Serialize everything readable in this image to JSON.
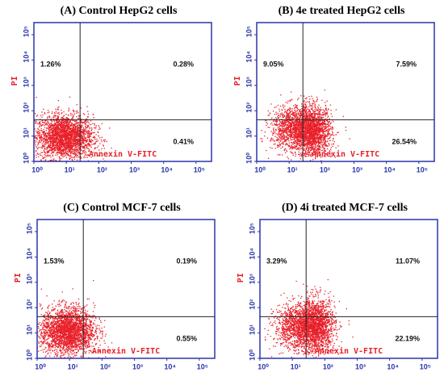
{
  "chart_data": [
    {
      "type": "scatter",
      "title": "(A)  Control HepG2 cells",
      "xlabel": "Annexin V-FITC",
      "ylabel": "PI",
      "values": [
        1.26,
        0.28,
        0.41
      ],
      "value_labels": [
        "1.26%",
        "0.28%",
        "0.41%"
      ],
      "color": "#e8202a",
      "axis_color": "#2a35a8",
      "log_scale": true,
      "xlim": [
        1,
        300000
      ],
      "ylim": [
        1,
        300000
      ],
      "xticks": [
        {
          "value": 1,
          "label": "10⁰"
        },
        {
          "value": 10,
          "label": "10¹"
        },
        {
          "value": 100,
          "label": "10²"
        },
        {
          "value": 1000,
          "label": "10³"
        },
        {
          "value": 10000,
          "label": "10⁴"
        },
        {
          "value": 100000,
          "label": "10⁵"
        }
      ],
      "yticks": [
        {
          "value": 1,
          "label": "10⁰"
        },
        {
          "value": 10,
          "label": "10¹"
        },
        {
          "value": 100,
          "label": "10²"
        },
        {
          "value": 1000,
          "label": "10³"
        },
        {
          "value": 10000,
          "label": "10⁴"
        },
        {
          "value": 100000,
          "label": "10⁵"
        }
      ]
    },
    {
      "type": "scatter",
      "title": "(B)  4e treated HepG2 cells",
      "xlabel": "Annexin V-FITC",
      "ylabel": "PI",
      "values": [
        9.05,
        7.59,
        26.54
      ],
      "value_labels": [
        "9.05%",
        "7.59%",
        "26.54%"
      ],
      "color": "#e8202a",
      "axis_color": "#2a35a8",
      "log_scale": true,
      "xlim": [
        1,
        300000
      ],
      "ylim": [
        1,
        300000
      ],
      "xticks": [
        {
          "value": 1,
          "label": "10⁰"
        },
        {
          "value": 10,
          "label": "10¹"
        },
        {
          "value": 100,
          "label": "10²"
        },
        {
          "value": 1000,
          "label": "10³"
        },
        {
          "value": 10000,
          "label": "10⁴"
        },
        {
          "value": 100000,
          "label": "10⁵"
        }
      ],
      "yticks": [
        {
          "value": 1,
          "label": "10⁰"
        },
        {
          "value": 10,
          "label": "10¹"
        },
        {
          "value": 100,
          "label": "10²"
        },
        {
          "value": 1000,
          "label": "10³"
        },
        {
          "value": 10000,
          "label": "10⁴"
        },
        {
          "value": 100000,
          "label": "10⁵"
        }
      ]
    },
    {
      "type": "scatter",
      "title": "(C)  Control MCF-7 cells",
      "xlabel": "Annexin V-FITC",
      "ylabel": "PI",
      "values": [
        1.53,
        0.19,
        0.55
      ],
      "value_labels": [
        "1.53%",
        "0.19%",
        "0.55%"
      ],
      "color": "#e8202a",
      "axis_color": "#2a35a8",
      "log_scale": true,
      "xlim": [
        1,
        300000
      ],
      "ylim": [
        1,
        300000
      ],
      "xticks": [
        {
          "value": 1,
          "label": "10⁰"
        },
        {
          "value": 10,
          "label": "10¹"
        },
        {
          "value": 100,
          "label": "10²"
        },
        {
          "value": 1000,
          "label": "10³"
        },
        {
          "value": 10000,
          "label": "10⁴"
        },
        {
          "value": 100000,
          "label": "10⁵"
        }
      ],
      "yticks": [
        {
          "value": 1,
          "label": "10⁰"
        },
        {
          "value": 10,
          "label": "10¹"
        },
        {
          "value": 100,
          "label": "10²"
        },
        {
          "value": 1000,
          "label": "10³"
        },
        {
          "value": 10000,
          "label": "10⁴"
        },
        {
          "value": 100000,
          "label": "10⁵"
        }
      ]
    },
    {
      "type": "scatter",
      "title": "(D)  4i treated MCF-7 cells",
      "xlabel": "Annexin V-FITC",
      "ylabel": "PI",
      "values": [
        3.29,
        11.07,
        22.19
      ],
      "value_labels": [
        "3.29%",
        "11.07%",
        "22.19%"
      ],
      "color": "#e8202a",
      "axis_color": "#2a35a8",
      "log_scale": true,
      "xlim": [
        1,
        300000
      ],
      "ylim": [
        1,
        300000
      ],
      "xticks": [
        {
          "value": 1,
          "label": "10⁰"
        },
        {
          "value": 10,
          "label": "10¹"
        },
        {
          "value": 100,
          "label": "10²"
        },
        {
          "value": 1000,
          "label": "10³"
        },
        {
          "value": 10000,
          "label": "10⁴"
        },
        {
          "value": 100000,
          "label": "10⁵"
        }
      ],
      "yticks": [
        {
          "value": 1,
          "label": "10⁰"
        },
        {
          "value": 10,
          "label": "10¹"
        },
        {
          "value": 100,
          "label": "10²"
        },
        {
          "value": 1000,
          "label": "10³"
        },
        {
          "value": 10000,
          "label": "10⁴"
        },
        {
          "value": 100000,
          "label": "10⁵"
        }
      ]
    }
  ]
}
